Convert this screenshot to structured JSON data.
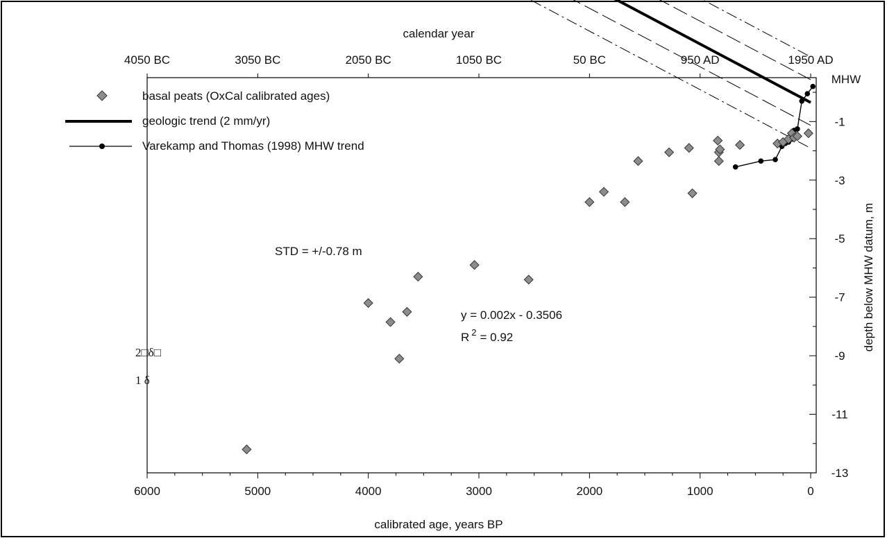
{
  "chart_data": {
    "type": "scatter",
    "top_axis_title": "calendar year",
    "top_tick_labels": [
      "4050 BC",
      "3050 BC",
      "2050 BC",
      "1050 BC",
      "50 BC",
      "950 AD",
      "1950 AD"
    ],
    "xlabel": "calibrated age, years BP",
    "x_ticks": [
      6000,
      5000,
      4000,
      3000,
      2000,
      1000,
      0
    ],
    "xlim": [
      6000,
      -50
    ],
    "ylabel": "depth below MHW datum, m",
    "y_ticks": [
      -1,
      -3,
      -5,
      -7,
      -9,
      -11,
      -13
    ],
    "y_top_label": "MHW",
    "ylim": [
      -13,
      0.5
    ],
    "grid": false,
    "legend_position": "top-left",
    "legend": [
      {
        "key": "peats",
        "label": "basal peats (OxCal calibrated ages)"
      },
      {
        "key": "trend",
        "label": "geologic trend (2 mm/yr)"
      },
      {
        "key": "vt",
        "label": "Varekamp and Thomas (1998) MHW trend"
      }
    ],
    "annotations": {
      "std": "STD = +/-0.78 m",
      "equation": "y = 0.002x - 0.3506",
      "r2_main": "R",
      "r2_sup": "2",
      "r2_value": "= 0.92",
      "two_delta": "2□δ□",
      "one_delta": "1  δ"
    },
    "series": [
      {
        "name": "basal peats (OxCal calibrated ages)",
        "marker": "diamond",
        "color": "#8c8c8c",
        "points": [
          [
            5100,
            -12.2
          ],
          [
            4000,
            -7.2
          ],
          [
            3800,
            -7.85
          ],
          [
            3720,
            -9.1
          ],
          [
            3650,
            -7.5
          ],
          [
            3550,
            -6.3
          ],
          [
            3040,
            -5.9
          ],
          [
            2550,
            -6.4
          ],
          [
            2000,
            -3.75
          ],
          [
            1870,
            -3.4
          ],
          [
            1680,
            -3.75
          ],
          [
            1560,
            -2.35
          ],
          [
            1280,
            -2.05
          ],
          [
            1100,
            -1.9
          ],
          [
            1070,
            -3.45
          ],
          [
            840,
            -1.65
          ],
          [
            830,
            -2.05
          ],
          [
            830,
            -2.35
          ],
          [
            820,
            -1.95
          ],
          [
            640,
            -1.8
          ],
          [
            300,
            -1.75
          ],
          [
            250,
            -1.7
          ],
          [
            200,
            -1.6
          ],
          [
            170,
            -1.4
          ],
          [
            150,
            -1.55
          ],
          [
            120,
            -1.5
          ],
          [
            20,
            -1.4
          ]
        ]
      },
      {
        "name": "geologic trend (2 mm/yr)",
        "type": "line",
        "color": "#000000",
        "slope": 0.002,
        "intercept": -0.3506,
        "x_range": [
          5100,
          0
        ]
      },
      {
        "name": "Varekamp and Thomas (1998) MHW trend",
        "type": "line-marker",
        "color": "#000000",
        "points": [
          [
            680,
            -2.55
          ],
          [
            450,
            -2.35
          ],
          [
            320,
            -2.3
          ],
          [
            260,
            -1.85
          ],
          [
            230,
            -1.75
          ],
          [
            200,
            -1.7
          ],
          [
            170,
            -1.6
          ],
          [
            160,
            -1.4
          ],
          [
            150,
            -1.3
          ],
          [
            120,
            -1.25
          ],
          [
            80,
            -0.3
          ],
          [
            30,
            -0.05
          ],
          [
            -20,
            0.2
          ]
        ]
      }
    ],
    "envelopes": [
      {
        "label": "1 δ",
        "offset": 0.78,
        "style": "dash",
        "x_range": [
          5100,
          0
        ]
      },
      {
        "label": "2 δ",
        "offset": 1.56,
        "style": "dash-dot",
        "x_range": [
          5100,
          0
        ]
      }
    ]
  }
}
